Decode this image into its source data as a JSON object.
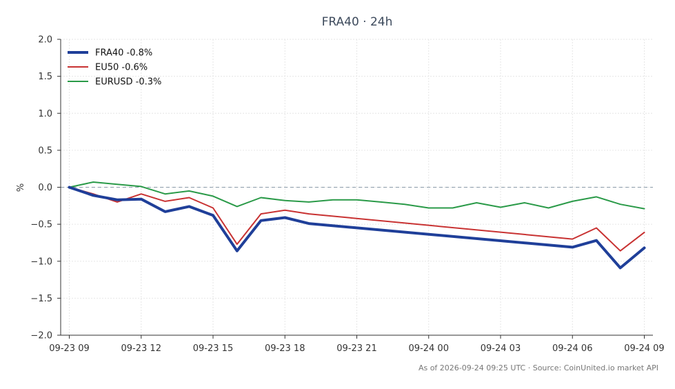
{
  "chart_data": {
    "type": "line",
    "title": "FRA40 · 24h",
    "xlabel": "",
    "ylabel": "%",
    "ylim": [
      -2.0,
      2.0
    ],
    "xlim": [
      -0.36,
      24.36
    ],
    "yticks": [
      "2.0",
      "1.5",
      "1.0",
      "0.5",
      "0.0",
      "−0.5",
      "−1.0",
      "−1.5",
      "−2.0"
    ],
    "ytick_values": [
      2.0,
      1.5,
      1.0,
      0.5,
      0.0,
      -0.5,
      -1.0,
      -1.5,
      -2.0
    ],
    "xticks": [
      "09-23 09",
      "09-23 12",
      "09-23 15",
      "09-23 18",
      "09-23 21",
      "09-24 00",
      "09-24 03",
      "09-24 06",
      "09-24 09"
    ],
    "xtick_values": [
      0,
      3,
      6,
      9,
      12,
      15,
      18,
      21,
      24
    ],
    "grid": true,
    "zero_line": true,
    "legend_position": "top-left",
    "series": [
      {
        "name": "FRA40 -0.8%",
        "color": "#1f3f99",
        "width": 4,
        "x": [
          0,
          1,
          2,
          3,
          4,
          5,
          6,
          7,
          8,
          9,
          10,
          21,
          22,
          23,
          24
        ],
        "y": [
          0.0,
          -0.11,
          -0.17,
          -0.16,
          -0.33,
          -0.26,
          -0.38,
          -0.86,
          -0.45,
          -0.41,
          -0.49,
          -0.81,
          -0.72,
          -1.09,
          -0.82
        ]
      },
      {
        "name": "EU50 -0.6%",
        "color": "#c83232",
        "width": 2,
        "x": [
          0,
          1,
          2,
          3,
          4,
          5,
          6,
          7,
          8,
          9,
          10,
          21,
          22,
          23,
          24
        ],
        "y": [
          0.0,
          -0.09,
          -0.2,
          -0.09,
          -0.19,
          -0.14,
          -0.28,
          -0.77,
          -0.36,
          -0.31,
          -0.36,
          -0.7,
          -0.55,
          -0.86,
          -0.61
        ]
      },
      {
        "name": "EURUSD -0.3%",
        "color": "#2a9a48",
        "width": 2,
        "x": [
          0,
          1,
          2,
          3,
          4,
          5,
          6,
          7,
          8,
          9,
          10,
          11,
          12,
          13,
          14,
          15,
          16,
          17,
          18,
          19,
          20,
          21,
          22,
          23,
          24
        ],
        "y": [
          0.0,
          0.07,
          0.04,
          0.01,
          -0.09,
          -0.05,
          -0.12,
          -0.26,
          -0.14,
          -0.18,
          -0.2,
          -0.17,
          -0.17,
          -0.2,
          -0.23,
          -0.28,
          -0.28,
          -0.21,
          -0.27,
          -0.21,
          -0.28,
          -0.19,
          -0.13,
          -0.23,
          -0.29
        ]
      }
    ]
  },
  "footer": "As of 2026-09-24 09:25 UTC · Source: CoinUnited.io market API"
}
